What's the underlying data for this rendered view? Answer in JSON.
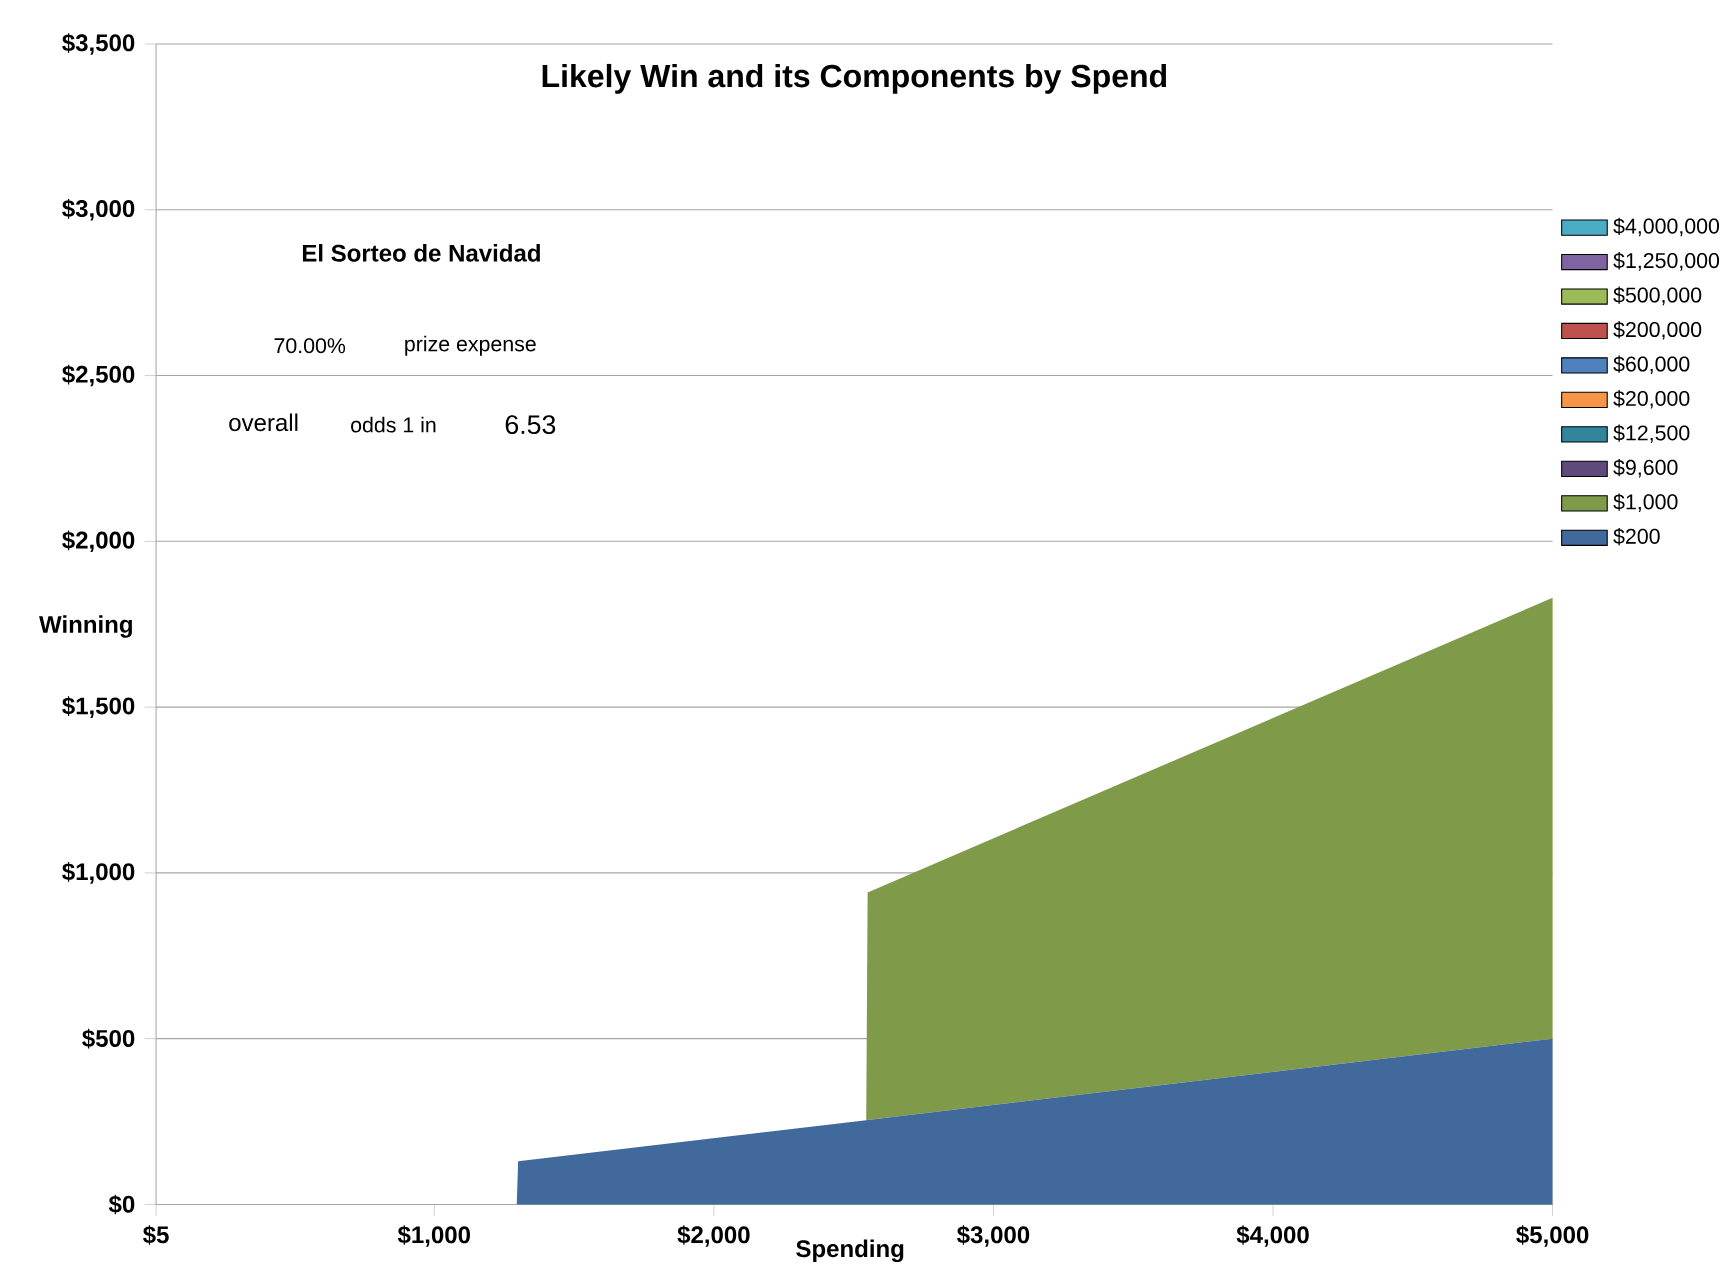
{
  "chart_data": {
    "type": "area",
    "title": "Likely Win and its Components by Spend",
    "xlabel": "Spending",
    "ylabel": "Winning",
    "annotations": [
      "El Sorteo de Navidad",
      "70.00%",
      "prize expense",
      "overall",
      "odds 1 in",
      "6.53"
    ],
    "x": [
      5,
      1295,
      1300,
      2545,
      2550,
      5000
    ],
    "stacked": true,
    "series": [
      {
        "name": "$200",
        "color": "#41699b",
        "values": [
          0,
          0,
          130,
          254,
          255,
          500
        ]
      },
      {
        "name": "$1,000",
        "color": "#7f9b4a",
        "values": [
          0,
          0,
          0,
          0,
          686,
          1330
        ]
      },
      {
        "name": "$9,600",
        "color": "#604a7b",
        "values": [
          null,
          null,
          null,
          null,
          null,
          null
        ]
      },
      {
        "name": "$12,500",
        "color": "#31859c",
        "values": [
          null,
          null,
          null,
          null,
          null,
          null
        ]
      },
      {
        "name": "$20,000",
        "color": "#f79646",
        "values": [
          null,
          null,
          null,
          null,
          null,
          null
        ]
      },
      {
        "name": "$60,000",
        "color": "#4f81bd",
        "values": [
          null,
          null,
          null,
          null,
          null,
          null
        ]
      },
      {
        "name": "$200,000",
        "color": "#c0504d",
        "values": [
          null,
          null,
          null,
          null,
          null,
          null
        ]
      },
      {
        "name": "$500,000",
        "color": "#9bbb59",
        "values": [
          null,
          null,
          null,
          null,
          null,
          null
        ]
      },
      {
        "name": "$1,250,000",
        "color": "#8064a2",
        "values": [
          null,
          null,
          null,
          null,
          null,
          null
        ]
      },
      {
        "name": "$4,000,000",
        "color": "#4bacc6",
        "values": [
          null,
          null,
          null,
          null,
          null,
          null
        ]
      }
    ],
    "xlim": [
      5,
      5000
    ],
    "xticks": [
      {
        "value": 5,
        "label": "$5"
      },
      {
        "value": 1000,
        "label": "$1,000"
      },
      {
        "value": 2000,
        "label": "$2,000"
      },
      {
        "value": 3000,
        "label": "$3,000"
      },
      {
        "value": 4000,
        "label": "$4,000"
      },
      {
        "value": 5000,
        "label": "$5,000"
      }
    ],
    "ylim": [
      0,
      3500
    ],
    "yticks": [
      {
        "value": 0,
        "label": "$0"
      },
      {
        "value": 500,
        "label": "$500"
      },
      {
        "value": 1000,
        "label": "$1,000"
      },
      {
        "value": 1500,
        "label": "$1,500"
      },
      {
        "value": 2000,
        "label": "$2,000"
      },
      {
        "value": 2500,
        "label": "$2,500"
      },
      {
        "value": 3000,
        "label": "$3,000"
      },
      {
        "value": 3500,
        "label": "$3,500"
      }
    ],
    "grid": "y",
    "legend": "right"
  }
}
